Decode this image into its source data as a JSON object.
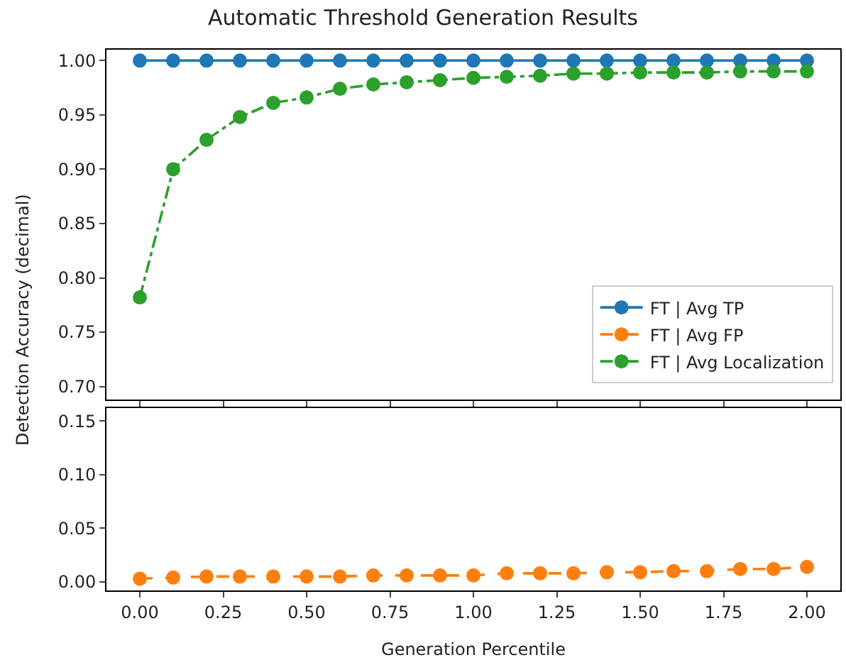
{
  "chart_data": [
    {
      "type": "line",
      "title": "Automatic Threshold Generation Results",
      "ylabel": "Detection Accuracy (decimal)",
      "x": [
        0,
        0.1,
        0.2,
        0.3,
        0.4,
        0.5,
        0.6,
        0.7,
        0.8,
        0.9,
        1.0,
        1.1,
        1.2,
        1.3,
        1.4,
        1.5,
        1.6,
        1.7,
        1.8,
        1.9,
        2.0
      ],
      "series": [
        {
          "name": "FT | Avg TP",
          "color": "#1f77b4",
          "line_style": "solid",
          "values": [
            1,
            1,
            1,
            1,
            1,
            1,
            1,
            1,
            1,
            1,
            1,
            1,
            1,
            1,
            1,
            1,
            1,
            1,
            1,
            1,
            1
          ]
        },
        {
          "name": "FT | Avg Localization",
          "color": "#2ca02c",
          "line_style": "dashdot",
          "values": [
            0.782,
            0.9,
            0.927,
            0.948,
            0.961,
            0.966,
            0.974,
            0.978,
            0.98,
            0.982,
            0.984,
            0.985,
            0.986,
            0.988,
            0.988,
            0.989,
            0.989,
            0.989,
            0.99,
            0.99,
            0.99
          ]
        }
      ],
      "marker": "circle",
      "xlim": [
        -0.1,
        2.1
      ],
      "ylim": [
        0.688,
        1.01
      ],
      "yticks": [
        {
          "value": 0.7,
          "label": "0.70"
        },
        0.75,
        {
          "value": 0.8,
          "label": "0.80"
        },
        0.85,
        {
          "value": 0.9,
          "label": "0.90"
        },
        0.95,
        {
          "value": 1.0,
          "label": "1.00"
        }
      ],
      "tick_labels": "y",
      "legend": "bottom right"
    },
    {
      "type": "line",
      "xlabel": "Generation Percentile",
      "x": [
        0,
        0.1,
        0.2,
        0.3,
        0.4,
        0.5,
        0.6,
        0.7,
        0.8,
        0.9,
        1.0,
        1.1,
        1.2,
        1.3,
        1.4,
        1.5,
        1.6,
        1.7,
        1.8,
        1.9,
        2.0
      ],
      "series": [
        {
          "name": "FT | Avg FP",
          "color": "#ff7f0e",
          "line_style": "dashed",
          "values": [
            0.003,
            0.004,
            0.005,
            0.005,
            0.005,
            0.005,
            0.005,
            0.006,
            0.006,
            0.006,
            0.006,
            0.008,
            0.008,
            0.008,
            0.009,
            0.009,
            0.01,
            0.01,
            0.012,
            0.012,
            0.014
          ]
        }
      ],
      "marker": "circle",
      "xlim": [
        -0.1,
        2.1
      ],
      "xticks": [
        {
          "value": 0,
          "label": "0.00"
        },
        0.25,
        {
          "value": 0.5,
          "label": "0.50"
        },
        0.75,
        {
          "value": 1.0,
          "label": "1.00"
        },
        1.25,
        {
          "value": 1.5,
          "label": "1.50"
        },
        1.75,
        {
          "value": 2.0,
          "label": "2.00"
        }
      ],
      "ylim": [
        -0.008,
        0.162
      ],
      "yticks": [
        {
          "value": 0,
          "label": "0.00"
        },
        0.05,
        {
          "value": 0.1,
          "label": "0.10"
        },
        0.15
      ]
    }
  ]
}
